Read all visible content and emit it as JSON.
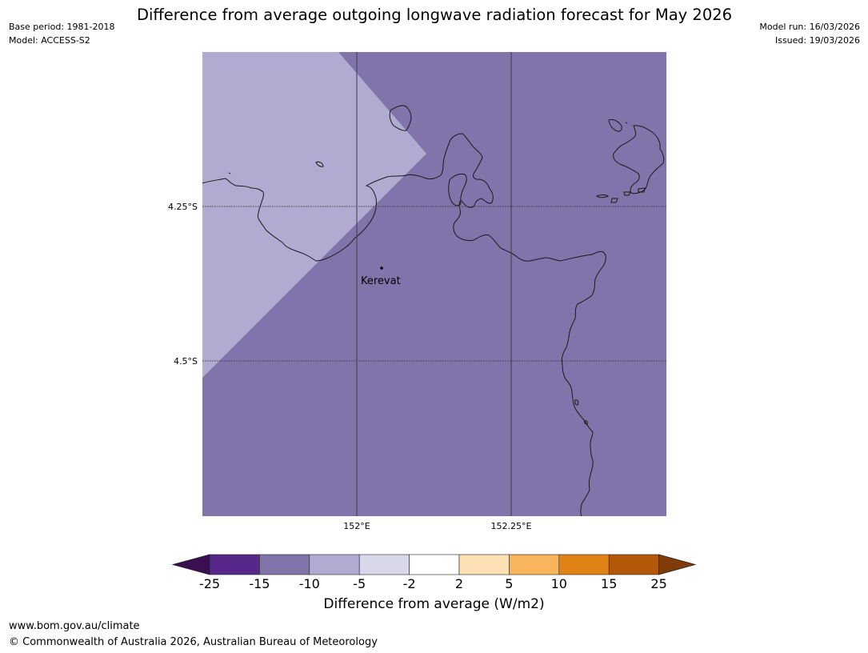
{
  "header": {
    "title": "Difference from average outgoing longwave radiation forecast for May 2026",
    "base_period": "Base period: 1981-2018",
    "model": "Model: ACCESS-S2",
    "model_run": "Model run: 16/03/2026",
    "issued": "Issued: 19/03/2026"
  },
  "map": {
    "latitude_labels": [
      "4.25°S",
      "4.5°S"
    ],
    "longitude_labels": [
      "152°E",
      "152.25°E"
    ],
    "place": "Kerevat",
    "colors": {
      "region_light": "#b1aad1",
      "region_main": "#8074ab",
      "coastline": "#1a1a1a",
      "grid": "#3a3a4a"
    }
  },
  "colorbar": {
    "ticks": [
      "-25",
      "-15",
      "-10",
      "-5",
      "-2",
      "2",
      "5",
      "10",
      "15",
      "25"
    ],
    "colors": [
      "#3b0f52",
      "#57278a",
      "#8074ab",
      "#b1aad1",
      "#d9d8eb",
      "#ffffff",
      "#fde0b4",
      "#f9b55c",
      "#e08314",
      "#b25808",
      "#7f3b08"
    ],
    "label": "Difference from average (W/m2)"
  },
  "footer": {
    "url": "www.bom.gov.au/climate",
    "copyright": "© Commonwealth of Australia 2026, Australian Bureau of Meteorology"
  }
}
